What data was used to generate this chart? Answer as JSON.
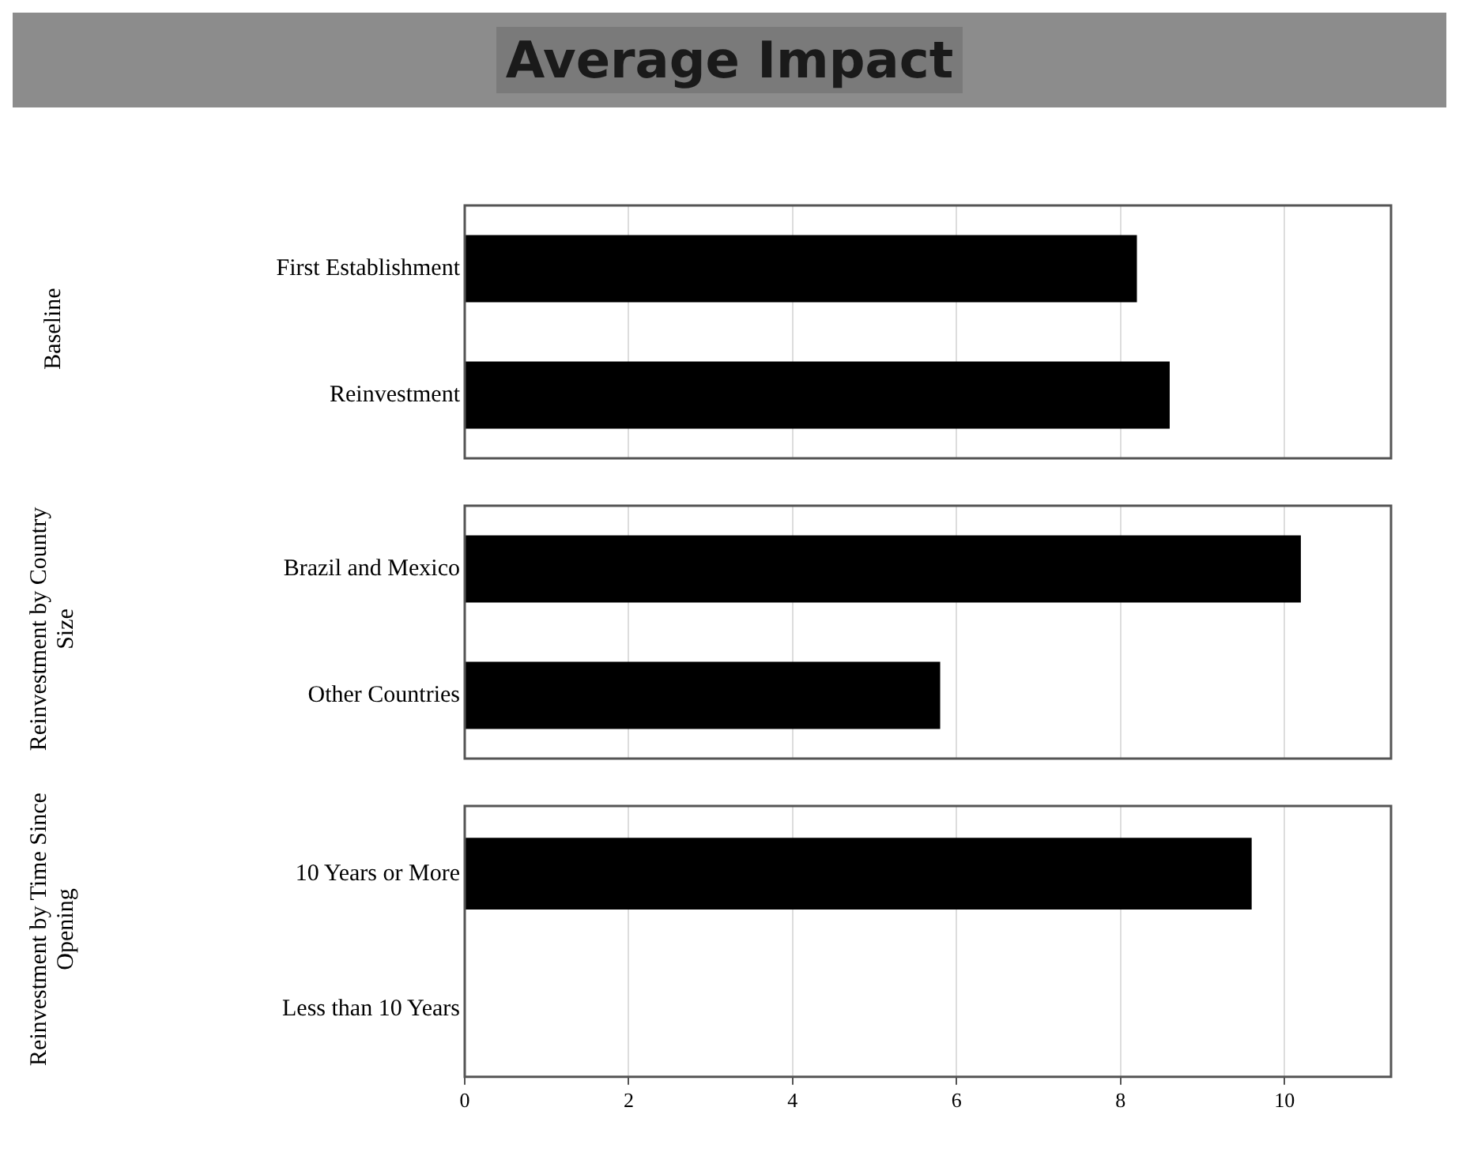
{
  "chart_data": [
    {
      "type": "bar",
      "orientation": "horizontal",
      "title": "Average Impact",
      "ylabel": "Baseline",
      "categories": [
        "First Establishment",
        "Reinvestment"
      ],
      "values": [
        8.2,
        8.6
      ],
      "color": "#000000",
      "xlim": [
        0,
        11.3
      ],
      "xticks": [
        0,
        2,
        4,
        6,
        8,
        10
      ],
      "grid": "x",
      "tick_labels": "y"
    },
    {
      "type": "bar",
      "orientation": "horizontal",
      "ylabel": "Reinvestment by Country Size",
      "categories": [
        "Brazil and Mexico",
        "Other Countries"
      ],
      "values": [
        10.2,
        5.8
      ],
      "color": "#000000",
      "xlim": [
        0,
        11.3
      ],
      "xticks": [
        0,
        2,
        4,
        6,
        8,
        10
      ],
      "grid": "x",
      "tick_labels": "y"
    },
    {
      "type": "bar",
      "orientation": "horizontal",
      "ylabel": "Reinvestment by Time Since Opening",
      "categories": [
        "10 Years or More",
        "Less than 10 Years"
      ],
      "values": [
        9.6,
        0
      ],
      "color": "#000000",
      "xlim": [
        0,
        11.3
      ],
      "xticks": [
        0,
        2,
        4,
        6,
        8,
        10
      ],
      "grid": "x"
    }
  ]
}
